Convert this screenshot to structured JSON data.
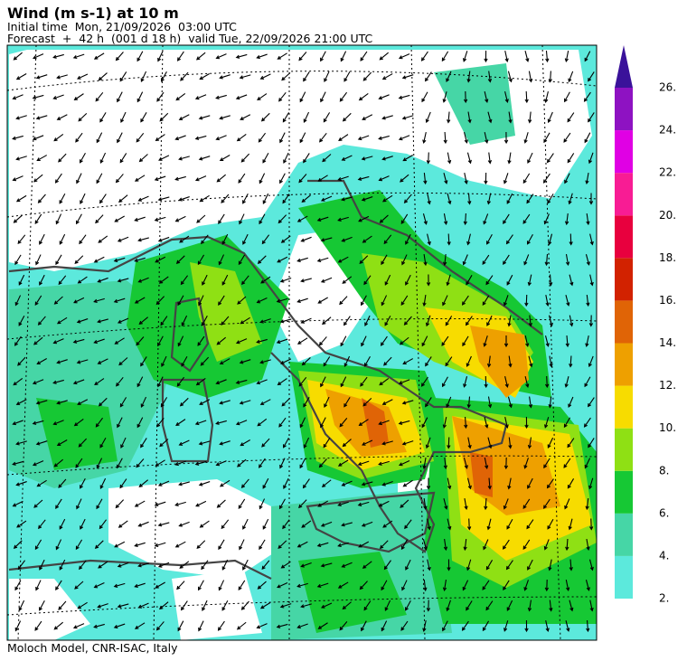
{
  "header": {
    "title": "Wind (m s-1) at 10 m",
    "initial_time": "Initial time  Mon, 21/09/2026  03:00 UTC",
    "forecast": "Forecast  +  42 h  (001 d 18 h)  valid Tue, 22/09/2026 21:00 UTC"
  },
  "footer": "Moloch Model, CNR-ISAC, Italy",
  "colorbar": {
    "levels": [
      {
        "value": 2,
        "label": "2."
      },
      {
        "value": 4,
        "label": "4."
      },
      {
        "value": 6,
        "label": "6."
      },
      {
        "value": 8,
        "label": "8."
      },
      {
        "value": 10,
        "label": "10."
      },
      {
        "value": 12,
        "label": "12."
      },
      {
        "value": 14,
        "label": "14."
      },
      {
        "value": 16,
        "label": "16."
      },
      {
        "value": 18,
        "label": "18."
      },
      {
        "value": 20,
        "label": "20."
      },
      {
        "value": 22,
        "label": "22."
      },
      {
        "value": 24,
        "label": "24."
      },
      {
        "value": 26,
        "label": "26."
      }
    ],
    "colors": [
      "#5ce9dc",
      "#46d6a6",
      "#16c834",
      "#8fe014",
      "#f7dc00",
      "#eea000",
      "#e06406",
      "#d22200",
      "#e8003e",
      "#f81c94",
      "#e000e4",
      "#8e12c2"
    ],
    "overflow_color": "#3a129a"
  }
}
